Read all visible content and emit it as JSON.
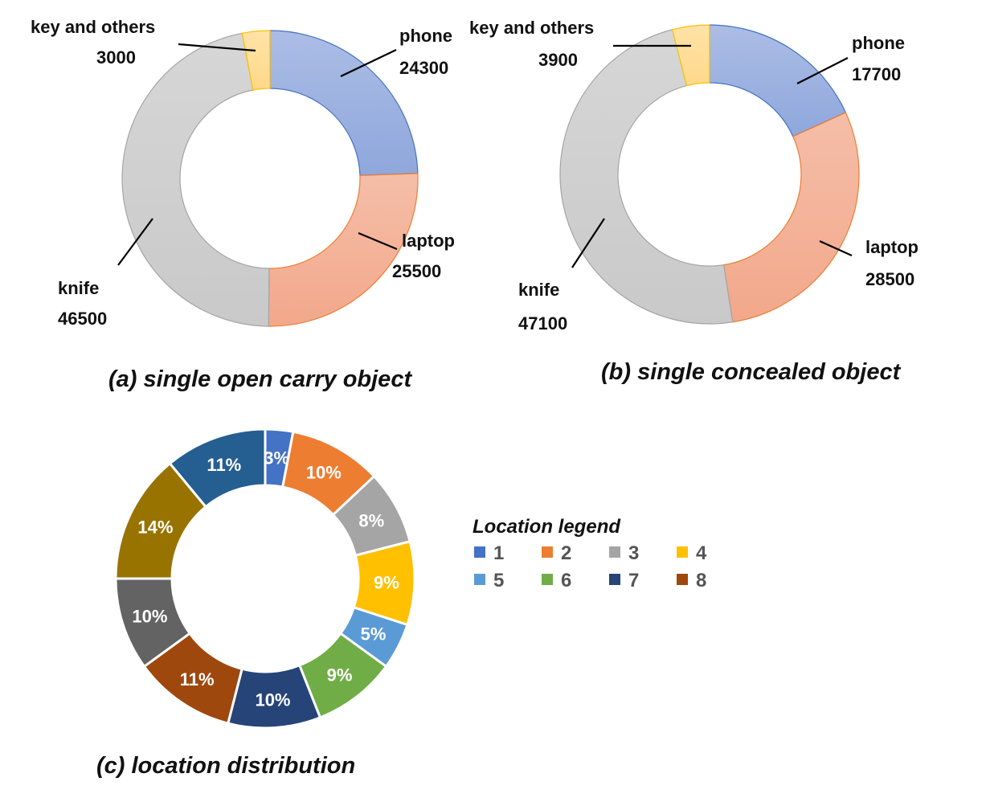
{
  "chart_data": [
    {
      "type": "pie",
      "variant": "donut",
      "caption": "(a) single open carry object",
      "slices": [
        {
          "name": "phone",
          "value": 24300,
          "color": "#8fa7dc"
        },
        {
          "name": "laptop",
          "value": 25500,
          "color": "#f2a88b"
        },
        {
          "name": "knife",
          "value": 46500,
          "color": "#c9c9c9"
        },
        {
          "name": "key and others",
          "value": 3000,
          "color": "#ffd98a"
        }
      ]
    },
    {
      "type": "pie",
      "variant": "donut",
      "caption": "(b) single concealed object",
      "slices": [
        {
          "name": "phone",
          "value": 17700,
          "color": "#8fa7dc"
        },
        {
          "name": "laptop",
          "value": 28500,
          "color": "#f2a88b"
        },
        {
          "name": "knife",
          "value": 47100,
          "color": "#c9c9c9"
        },
        {
          "name": "key and others",
          "value": 3900,
          "color": "#ffd98a"
        }
      ]
    },
    {
      "type": "pie",
      "variant": "donut",
      "caption": "(c) location distribution",
      "legend_title": "Location  legend",
      "legend_position": "right",
      "slices": [
        {
          "name": "1",
          "label": "3%",
          "value": 3,
          "color": "#4472c4"
        },
        {
          "name": "2",
          "label": "10%",
          "value": 10,
          "color": "#ed7d31"
        },
        {
          "name": "3",
          "label": "8%",
          "value": 8,
          "color": "#a5a5a5"
        },
        {
          "name": "4",
          "label": "9%",
          "value": 9,
          "color": "#ffc000"
        },
        {
          "name": "5",
          "label": "5%",
          "value": 5,
          "color": "#5b9bd5"
        },
        {
          "name": "6",
          "label": "9%",
          "value": 9,
          "color": "#70ad47"
        },
        {
          "name": "7",
          "label": "10%",
          "value": 10,
          "color": "#264478"
        },
        {
          "name": "8",
          "label": "11%",
          "value": 11,
          "color": "#9e480e"
        },
        {
          "name": "",
          "label": "10%",
          "value": 10,
          "color": "#636363"
        },
        {
          "name": "",
          "label": "14%",
          "value": 14,
          "color": "#997300"
        },
        {
          "name": "",
          "label": "11%",
          "value": 11,
          "color": "#255e91"
        }
      ]
    }
  ]
}
